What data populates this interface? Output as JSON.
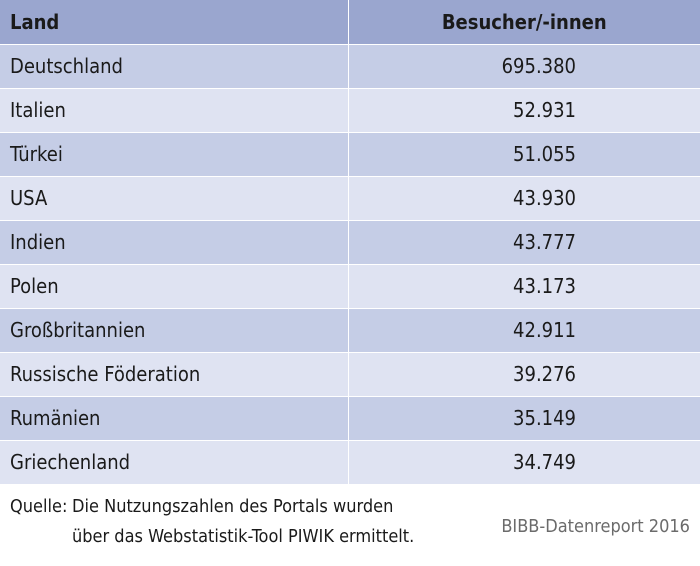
{
  "table": {
    "headers": {
      "land": "Land",
      "count": "Besucher/-innen"
    },
    "rows": [
      {
        "land": "Deutschland",
        "count": "695.380"
      },
      {
        "land": "Italien",
        "count": "52.931"
      },
      {
        "land": "Türkei",
        "count": "51.055"
      },
      {
        "land": "USA",
        "count": "43.930"
      },
      {
        "land": "Indien",
        "count": "43.777"
      },
      {
        "land": "Polen",
        "count": "43.173"
      },
      {
        "land": "Großbritannien",
        "count": "42.911"
      },
      {
        "land": "Russische Föderation",
        "count": "39.276"
      },
      {
        "land": "Rumänien",
        "count": "35.149"
      },
      {
        "land": "Griechenland",
        "count": "34.749"
      }
    ]
  },
  "footer": {
    "source_label": "Quelle:",
    "source_line1": "Die Nutzungszahlen des Portals wurden",
    "source_line2": "über das Webstatistik-Tool PIWIK ermittelt.",
    "credit": "BIBB-Datenreport 2016"
  },
  "colors": {
    "header_bg": "#9aa6cf",
    "row_dark": "#c5cde6",
    "row_light": "#dfe3f2"
  }
}
